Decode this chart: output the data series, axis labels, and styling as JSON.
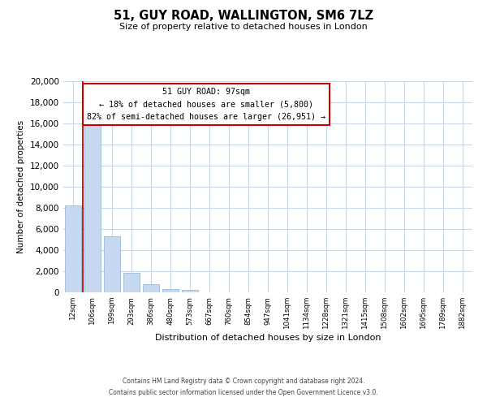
{
  "title": "51, GUY ROAD, WALLINGTON, SM6 7LZ",
  "subtitle": "Size of property relative to detached houses in London",
  "xlabel": "Distribution of detached houses by size in London",
  "ylabel": "Number of detached properties",
  "bar_color": "#c6d9f0",
  "bar_edge_color": "#8aafd4",
  "vline_color": "#cc0000",
  "vline_x": 1.0,
  "annotation_title": "51 GUY ROAD: 97sqm",
  "annotation_line1": "← 18% of detached houses are smaller (5,800)",
  "annotation_line2": "82% of semi-detached houses are larger (26,951) →",
  "annotation_box_color": "#ffffff",
  "annotation_box_edge": "#cc0000",
  "categories": [
    "12sqm",
    "106sqm",
    "199sqm",
    "293sqm",
    "386sqm",
    "480sqm",
    "573sqm",
    "667sqm",
    "760sqm",
    "854sqm",
    "947sqm",
    "1041sqm",
    "1134sqm",
    "1228sqm",
    "1321sqm",
    "1415sqm",
    "1508sqm",
    "1602sqm",
    "1695sqm",
    "1789sqm",
    "1882sqm"
  ],
  "values": [
    8200,
    16500,
    5300,
    1850,
    800,
    280,
    200,
    0,
    0,
    0,
    0,
    0,
    0,
    0,
    0,
    0,
    0,
    0,
    0,
    0,
    0
  ],
  "ylim": [
    0,
    20000
  ],
  "yticks": [
    0,
    2000,
    4000,
    6000,
    8000,
    10000,
    12000,
    14000,
    16000,
    18000,
    20000
  ],
  "footer_line1": "Contains HM Land Registry data © Crown copyright and database right 2024.",
  "footer_line2": "Contains public sector information licensed under the Open Government Licence v3.0.",
  "bg_color": "#ffffff",
  "grid_color": "#c8d8e8"
}
